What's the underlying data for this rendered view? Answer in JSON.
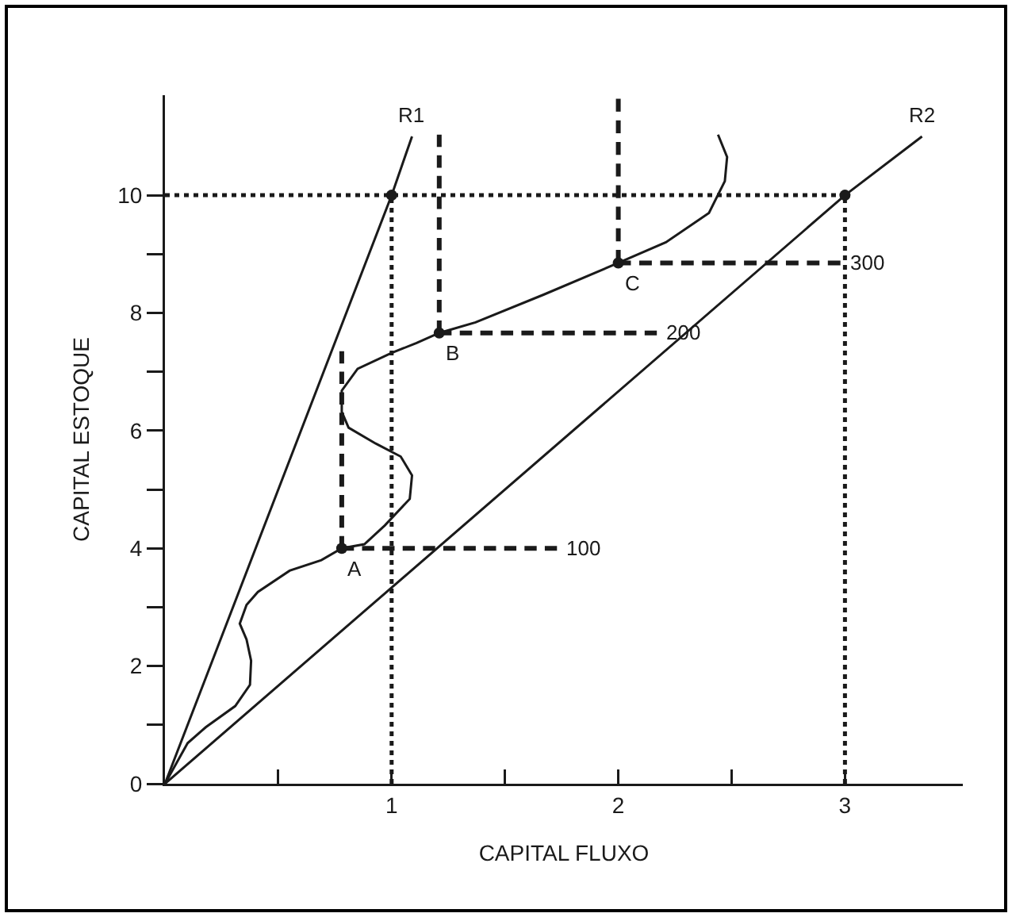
{
  "chart_data": {
    "type": "line",
    "xlabel": "CAPITAL FLUXO",
    "ylabel": "CAPITAL ESTOQUE",
    "xlim": [
      0,
      3.52
    ],
    "ylim": [
      0,
      11.7
    ],
    "xticks": [
      {
        "value": 0.5,
        "label": null
      },
      1,
      {
        "value": 1.5,
        "label": null
      },
      2,
      {
        "value": 2.5,
        "label": null
      },
      3
    ],
    "yticks": [
      0,
      {
        "value": 1,
        "label": null
      },
      2,
      {
        "value": 3,
        "label": null
      },
      4,
      {
        "value": 5,
        "label": null
      },
      6,
      {
        "value": 7,
        "label": null
      },
      8,
      {
        "value": 9,
        "label": null
      },
      10
    ],
    "grid": false,
    "series": [
      {
        "type": "line",
        "color": "#1a1a1a",
        "line_style": "solid",
        "x": [
          0,
          0.1,
          0.18,
          0.31,
          0.375,
          0.38,
          0.36,
          0.33,
          0.36,
          0.41,
          0.55,
          0.69,
          0.78,
          0.88,
          0.97,
          1.08,
          1.09,
          1.04,
          0.93,
          0.81,
          0.78,
          0.78,
          0.85,
          1.0,
          1.11,
          1.21,
          1.37,
          1.67,
          2.0,
          2.21,
          2.4,
          2.47,
          2.48,
          2.44
        ],
        "values": [
          0,
          0.69,
          0.96,
          1.32,
          1.68,
          2.09,
          2.45,
          2.72,
          3.04,
          3.26,
          3.62,
          3.8,
          4.0,
          4.07,
          4.39,
          4.84,
          5.24,
          5.56,
          5.78,
          6.05,
          6.32,
          6.68,
          7.05,
          7.32,
          7.49,
          7.66,
          7.84,
          8.31,
          8.85,
          9.2,
          9.7,
          10.24,
          10.65,
          11.03
        ]
      },
      {
        "type": "line",
        "color": "#1a1a1a",
        "line_style": "solid",
        "x": [
          0,
          1,
          1.09
        ],
        "values": [
          0,
          10,
          11.0
        ]
      },
      {
        "type": "line",
        "color": "#1a1a1a",
        "line_style": "solid",
        "x": [
          0,
          3,
          3.34
        ],
        "values": [
          0,
          10,
          11.0
        ]
      },
      {
        "type": "line",
        "color": "#1a1a1a",
        "line_style": "dashed",
        "x": [
          0.78,
          0.78
        ],
        "values": [
          4.0,
          7.35
        ]
      },
      {
        "type": "line",
        "color": "#1a1a1a",
        "line_style": "dashed",
        "x": [
          0.78,
          1.73
        ],
        "values": [
          4.0,
          4.0
        ]
      },
      {
        "type": "line",
        "color": "#1a1a1a",
        "line_style": "dashed",
        "x": [
          1.21,
          1.21
        ],
        "values": [
          7.66,
          11.03
        ]
      },
      {
        "type": "line",
        "color": "#1a1a1a",
        "line_style": "dashed",
        "x": [
          1.21,
          2.17
        ],
        "values": [
          7.66,
          7.66
        ]
      },
      {
        "type": "line",
        "color": "#1a1a1a",
        "line_style": "dashed",
        "x": [
          2.0,
          2.0
        ],
        "values": [
          8.85,
          11.64
        ]
      },
      {
        "type": "line",
        "color": "#1a1a1a",
        "line_style": "dashed",
        "x": [
          2.0,
          2.98
        ],
        "values": [
          8.85,
          8.85
        ]
      },
      {
        "type": "line",
        "color": "#1a1a1a",
        "line_style": "dotted",
        "x": [
          0,
          3
        ],
        "values": [
          10,
          10
        ]
      },
      {
        "type": "line",
        "color": "#1a1a1a",
        "line_style": "dotted",
        "x": [
          1,
          1
        ],
        "values": [
          0,
          10
        ]
      },
      {
        "type": "line",
        "color": "#1a1a1a",
        "line_style": "dotted",
        "x": [
          3,
          3
        ],
        "values": [
          0,
          10
        ]
      },
      {
        "type": "scatter",
        "color": "#1a1a1a",
        "marker": "circle",
        "x": [
          0.78,
          1.21,
          2.0,
          1,
          3
        ],
        "values": [
          4.0,
          7.66,
          8.85,
          10,
          10
        ]
      }
    ],
    "annotations": [
      {
        "text": "A",
        "x": 0.78,
        "y": 4.0
      },
      {
        "text": "B",
        "x": 1.21,
        "y": 7.66
      },
      {
        "text": "C",
        "x": 2.0,
        "y": 8.85
      },
      {
        "text": "100",
        "x": 1.73,
        "y": 4.0
      },
      {
        "text": "200",
        "x": 2.17,
        "y": 7.66
      },
      {
        "text": "300",
        "x": 2.98,
        "y": 8.85
      },
      {
        "text": "R1",
        "x": 1.09,
        "y": 11.0
      },
      {
        "text": "R2",
        "x": 3.34,
        "y": 11.0
      }
    ]
  }
}
